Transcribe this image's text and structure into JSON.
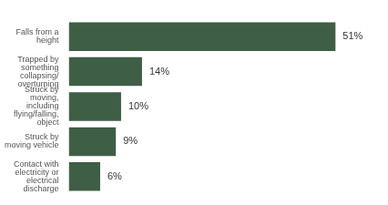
{
  "chart_data": {
    "type": "bar",
    "orientation": "horizontal",
    "categories": [
      "Falls from a height",
      "Trapped by something collapsing/overturning",
      "Struck by moving, including flying/falling, object",
      "Struck by moving vehicle",
      "Contact with electricity or electrical discharge"
    ],
    "values": [
      51,
      14,
      10,
      9,
      6
    ],
    "value_labels": [
      "51%",
      "14%",
      "10%",
      "9%",
      "6%"
    ],
    "color": "#3e5e45",
    "grid": false,
    "data_labels": true,
    "tick_labels": "y"
  }
}
